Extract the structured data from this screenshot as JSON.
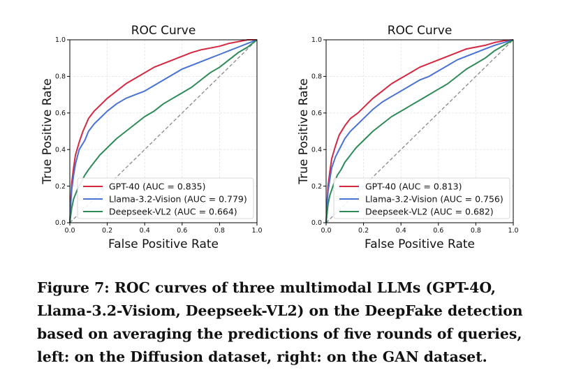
{
  "figure": {
    "caption_lines": [
      "Figure 7: ROC curves of three multimodal LLMs (GPT-4O,",
      "Llama-3.2-Visiom, Deepseek-VL2) on the DeepFake detection",
      "based on averaging the predictions of five rounds of queries,",
      "left: on the Diffusion dataset, right: on the GAN dataset."
    ]
  },
  "colors": {
    "gpt": "#d62740",
    "llama": "#4a72d3",
    "deepseek": "#2e8b57",
    "diagonal": "#888888"
  },
  "chart_data": [
    {
      "type": "line",
      "title": "ROC Curve",
      "xlabel": "False Positive Rate",
      "ylabel": "True Positive Rate",
      "xlim": [
        0,
        1
      ],
      "ylim": [
        0,
        1
      ],
      "xticks": [
        "0.0",
        "0.2",
        "0.4",
        "0.6",
        "0.8",
        "1.0"
      ],
      "yticks": [
        "0.0",
        "0.2",
        "0.4",
        "0.6",
        "0.8",
        "1.0"
      ],
      "grid": true,
      "legend_position": "lower-right",
      "diagonal": true,
      "series": [
        {
          "name": "GPT-40 (AUC = 0.835)",
          "color": "#d62740",
          "x": [
            0,
            0.005,
            0.01,
            0.02,
            0.03,
            0.05,
            0.07,
            0.1,
            0.13,
            0.17,
            0.2,
            0.25,
            0.3,
            0.35,
            0.4,
            0.45,
            0.5,
            0.55,
            0.6,
            0.65,
            0.7,
            0.75,
            0.8,
            0.85,
            0.9,
            0.95,
            1.0
          ],
          "y": [
            0,
            0.12,
            0.22,
            0.3,
            0.37,
            0.44,
            0.5,
            0.57,
            0.61,
            0.65,
            0.68,
            0.72,
            0.76,
            0.79,
            0.82,
            0.85,
            0.87,
            0.89,
            0.91,
            0.93,
            0.945,
            0.955,
            0.965,
            0.98,
            0.99,
            1.0,
            1.0
          ]
        },
        {
          "name": "Llama-3.2-Vision (AUC = 0.779)",
          "color": "#4a72d3",
          "x": [
            0,
            0.005,
            0.01,
            0.02,
            0.03,
            0.05,
            0.08,
            0.1,
            0.13,
            0.17,
            0.2,
            0.25,
            0.3,
            0.35,
            0.4,
            0.45,
            0.5,
            0.55,
            0.6,
            0.65,
            0.7,
            0.75,
            0.8,
            0.85,
            0.9,
            0.95,
            1.0
          ],
          "y": [
            0,
            0.1,
            0.18,
            0.26,
            0.32,
            0.4,
            0.45,
            0.5,
            0.54,
            0.58,
            0.61,
            0.65,
            0.68,
            0.7,
            0.72,
            0.75,
            0.78,
            0.81,
            0.84,
            0.86,
            0.88,
            0.9,
            0.92,
            0.94,
            0.96,
            0.98,
            1.0
          ]
        },
        {
          "name": "Deepseek-VL2 (AUC = 0.664)",
          "color": "#2e8b57",
          "x": [
            0,
            0.01,
            0.02,
            0.04,
            0.06,
            0.08,
            0.1,
            0.13,
            0.16,
            0.2,
            0.25,
            0.3,
            0.35,
            0.4,
            0.45,
            0.5,
            0.55,
            0.6,
            0.65,
            0.7,
            0.75,
            0.8,
            0.85,
            0.9,
            0.95,
            1.0
          ],
          "y": [
            0,
            0.08,
            0.13,
            0.18,
            0.22,
            0.26,
            0.29,
            0.33,
            0.37,
            0.41,
            0.46,
            0.5,
            0.54,
            0.58,
            0.61,
            0.65,
            0.68,
            0.71,
            0.74,
            0.78,
            0.82,
            0.85,
            0.89,
            0.93,
            0.96,
            1.0
          ]
        }
      ]
    },
    {
      "type": "line",
      "title": "ROC Curve",
      "xlabel": "False Positive Rate",
      "ylabel": "True Positive Rate",
      "xlim": [
        0,
        1
      ],
      "ylim": [
        0,
        1
      ],
      "xticks": [
        "0.0",
        "0.2",
        "0.4",
        "0.6",
        "0.8",
        "1.0"
      ],
      "yticks": [
        "0.0",
        "0.2",
        "0.4",
        "0.6",
        "0.8",
        "1.0"
      ],
      "grid": true,
      "legend_position": "lower-right",
      "diagonal": true,
      "series": [
        {
          "name": "GPT-40 (AUC = 0.813)",
          "color": "#d62740",
          "x": [
            0,
            0.005,
            0.01,
            0.02,
            0.03,
            0.05,
            0.07,
            0.1,
            0.13,
            0.17,
            0.2,
            0.25,
            0.3,
            0.35,
            0.4,
            0.45,
            0.5,
            0.55,
            0.6,
            0.65,
            0.7,
            0.75,
            0.8,
            0.85,
            0.9,
            0.95,
            1.0
          ],
          "y": [
            0,
            0.1,
            0.2,
            0.28,
            0.35,
            0.42,
            0.48,
            0.53,
            0.57,
            0.6,
            0.63,
            0.68,
            0.72,
            0.76,
            0.79,
            0.82,
            0.85,
            0.87,
            0.89,
            0.91,
            0.93,
            0.95,
            0.96,
            0.97,
            0.985,
            0.995,
            1.0
          ]
        },
        {
          "name": "Llama-3.2-Vision (AUC = 0.756)",
          "color": "#4a72d3",
          "x": [
            0,
            0.005,
            0.01,
            0.02,
            0.03,
            0.05,
            0.08,
            0.1,
            0.13,
            0.17,
            0.2,
            0.25,
            0.3,
            0.35,
            0.4,
            0.45,
            0.5,
            0.55,
            0.6,
            0.65,
            0.7,
            0.75,
            0.8,
            0.85,
            0.9,
            0.95,
            1.0
          ],
          "y": [
            0,
            0.09,
            0.17,
            0.24,
            0.3,
            0.36,
            0.42,
            0.46,
            0.5,
            0.54,
            0.57,
            0.62,
            0.66,
            0.69,
            0.72,
            0.75,
            0.78,
            0.8,
            0.83,
            0.86,
            0.89,
            0.91,
            0.93,
            0.95,
            0.97,
            0.985,
            1.0
          ]
        },
        {
          "name": "Deepseek-VL2 (AUC = 0.682)",
          "color": "#2e8b57",
          "x": [
            0,
            0.01,
            0.02,
            0.04,
            0.06,
            0.08,
            0.1,
            0.13,
            0.16,
            0.2,
            0.25,
            0.3,
            0.35,
            0.4,
            0.45,
            0.5,
            0.55,
            0.6,
            0.65,
            0.7,
            0.75,
            0.8,
            0.85,
            0.9,
            0.95,
            1.0
          ],
          "y": [
            0,
            0.1,
            0.15,
            0.21,
            0.26,
            0.29,
            0.33,
            0.37,
            0.41,
            0.45,
            0.5,
            0.54,
            0.58,
            0.61,
            0.64,
            0.67,
            0.7,
            0.73,
            0.76,
            0.8,
            0.84,
            0.87,
            0.9,
            0.94,
            0.97,
            1.0
          ]
        }
      ]
    }
  ]
}
